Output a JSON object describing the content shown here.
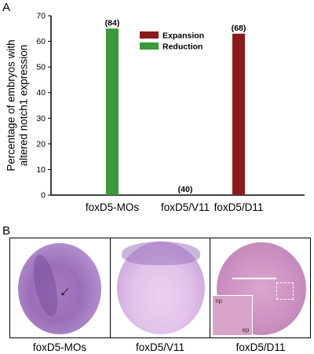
{
  "panel_a_label": "A",
  "panel_b_label": "B",
  "chart_data": {
    "type": "bar",
    "categories": [
      "foxD5-MOs",
      "foxD5/V11",
      "foxD5/D11"
    ],
    "values": [
      65,
      0,
      63
    ],
    "bar_colors": [
      "#3a9a3a",
      "#3a9a3a",
      "#8b1a1a"
    ],
    "data_labels": [
      "(84)",
      "(40)",
      "(68)"
    ],
    "ylabel": "Percentage of embryos with altered notch1 expression",
    "ylabel_lines": [
      "Percentage of embryos with",
      "altered notch1 expression"
    ],
    "ylim": [
      0,
      70
    ],
    "yticks": [
      0,
      10,
      20,
      30,
      40,
      50,
      60,
      70
    ],
    "grid": false,
    "legend_position": "top-center",
    "legend": [
      {
        "name": "Expansion",
        "color": "#8b1a1a"
      },
      {
        "name": "Reduction",
        "color": "#3a9a3a"
      }
    ]
  },
  "photos": {
    "captions": [
      "foxD5-MOs",
      "foxD5/V11",
      "foxD5/D11"
    ],
    "inset_labels": {
      "top": "np",
      "bottom": "ep"
    }
  }
}
